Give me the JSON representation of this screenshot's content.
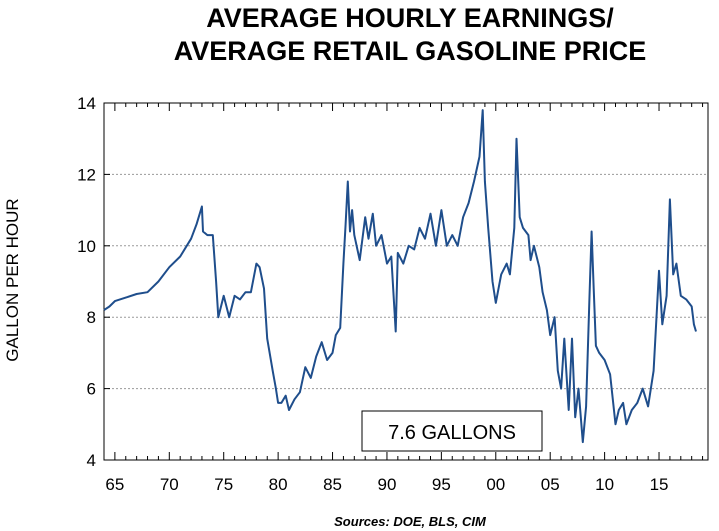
{
  "chart_data": {
    "type": "line",
    "title_lines": [
      "AVERAGE HOURLY EARNINGS/",
      "AVERAGE RETAIL GASOLINE PRICE"
    ],
    "ylabel": "GALLON PER HOUR",
    "xlabel": "",
    "source": "Sources:  DOE, BLS, CIM",
    "annotation": "7.6 GALLONS",
    "x_tick_labels": [
      "65",
      "70",
      "75",
      "80",
      "85",
      "90",
      "95",
      "00",
      "05",
      "10",
      "15"
    ],
    "x_tick_years": [
      1965,
      1970,
      1975,
      1980,
      1985,
      1990,
      1995,
      2000,
      2005,
      2010,
      2015
    ],
    "xlim": [
      1964,
      2019.5
    ],
    "ylim": [
      4,
      14
    ],
    "y_ticks": [
      4,
      6,
      8,
      10,
      12,
      14
    ],
    "y_tick_labels": [
      "4",
      "6",
      "8",
      "10",
      "12",
      "14"
    ],
    "grid": "horizontal dotted",
    "line_color": "#1f4e8c",
    "series": [
      {
        "x": [
          1964.0,
          1964.5,
          1965.0,
          1966.0,
          1967.0,
          1968.0,
          1969.0,
          1970.0,
          1971.0,
          1972.0,
          1972.5,
          1973.0,
          1973.1,
          1973.5,
          1974.0,
          1974.3,
          1974.5,
          1975.0,
          1975.5,
          1976.0,
          1976.5,
          1977.0,
          1977.5,
          1978.0,
          1978.3,
          1978.7,
          1979.0,
          1979.5,
          1979.8,
          1980.0,
          1980.3,
          1980.7,
          1981.0,
          1981.5,
          1982.0,
          1982.5,
          1983.0,
          1983.5,
          1984.0,
          1984.5,
          1985.0,
          1985.3,
          1985.7,
          1986.0,
          1986.2,
          1986.4,
          1986.6,
          1986.8,
          1987.0,
          1987.5,
          1988.0,
          1988.3,
          1988.7,
          1989.0,
          1989.5,
          1990.0,
          1990.4,
          1990.8,
          1991.0,
          1991.5,
          1992.0,
          1992.5,
          1993.0,
          1993.5,
          1994.0,
          1994.5,
          1995.0,
          1995.5,
          1996.0,
          1996.5,
          1997.0,
          1997.5,
          1998.0,
          1998.5,
          1998.8,
          1999.0,
          1999.3,
          1999.7,
          2000.0,
          2000.5,
          2001.0,
          2001.3,
          2001.7,
          2001.9,
          2002.2,
          2002.5,
          2003.0,
          2003.2,
          2003.5,
          2004.0,
          2004.3,
          2004.7,
          2005.0,
          2005.4,
          2005.7,
          2006.0,
          2006.3,
          2006.7,
          2007.0,
          2007.3,
          2007.6,
          2008.0,
          2008.3,
          2008.6,
          2008.8,
          2009.0,
          2009.2,
          2009.5,
          2010.0,
          2010.5,
          2011.0,
          2011.3,
          2011.7,
          2012.0,
          2012.5,
          2013.0,
          2013.5,
          2014.0,
          2014.5,
          2015.0,
          2015.3,
          2015.7,
          2016.0,
          2016.3,
          2016.6,
          2017.0,
          2017.5,
          2018.0,
          2018.2,
          2018.4
        ],
        "y": [
          8.2,
          8.3,
          8.45,
          8.55,
          8.65,
          8.7,
          9.0,
          9.4,
          9.7,
          10.2,
          10.6,
          11.1,
          10.4,
          10.3,
          10.3,
          9.0,
          8.0,
          8.6,
          8.0,
          8.6,
          8.5,
          8.7,
          8.7,
          9.5,
          9.4,
          8.8,
          7.4,
          6.5,
          6.0,
          5.6,
          5.6,
          5.8,
          5.4,
          5.7,
          5.9,
          6.6,
          6.3,
          6.9,
          7.3,
          6.8,
          7.0,
          7.5,
          7.7,
          9.5,
          10.6,
          11.8,
          10.4,
          11.0,
          10.3,
          9.6,
          10.8,
          10.2,
          10.9,
          10.0,
          10.3,
          9.5,
          9.7,
          7.6,
          9.8,
          9.5,
          10.0,
          9.9,
          10.5,
          10.2,
          10.9,
          10.0,
          11.0,
          10.0,
          10.3,
          10.0,
          10.8,
          11.2,
          11.8,
          12.5,
          13.8,
          11.8,
          10.5,
          9.0,
          8.4,
          9.2,
          9.5,
          9.2,
          10.5,
          13.0,
          10.8,
          10.5,
          10.3,
          9.6,
          10.0,
          9.4,
          8.7,
          8.2,
          7.5,
          8.0,
          6.5,
          6.0,
          7.4,
          5.4,
          7.4,
          5.2,
          6.0,
          4.5,
          5.5,
          8.5,
          10.4,
          8.8,
          7.2,
          7.0,
          6.8,
          6.4,
          5.0,
          5.4,
          5.6,
          5.0,
          5.4,
          5.6,
          6.0,
          5.5,
          6.5,
          9.3,
          7.8,
          8.6,
          11.3,
          9.2,
          9.5,
          8.6,
          8.5,
          8.3,
          7.8,
          7.6
        ],
        "y_note": "approximate readings"
      }
    ]
  }
}
